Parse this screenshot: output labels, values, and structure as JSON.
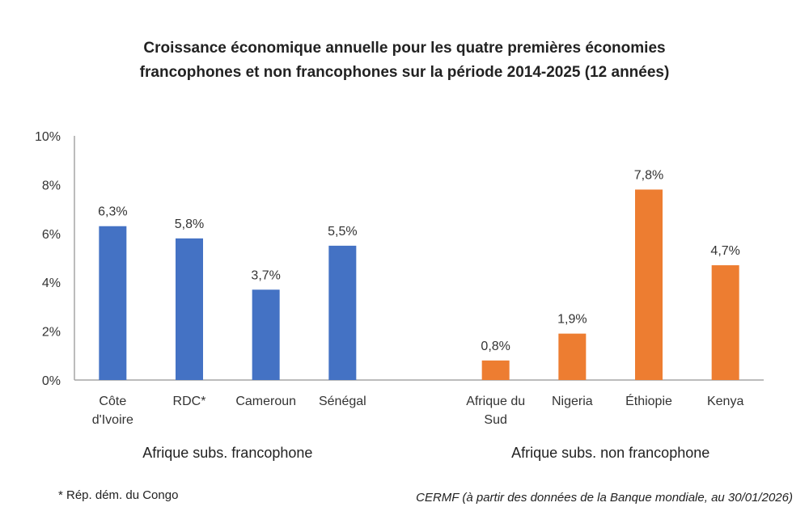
{
  "chart_data": {
    "type": "bar",
    "title_lines": [
      "Croissance économique annuelle pour les quatre premières économies",
      "francophones et non francophones sur la période 2014-2025  (12 années)"
    ],
    "ylim": [
      0,
      10
    ],
    "y_ticks": [
      "0%",
      "2%",
      "4%",
      "6%",
      "8%",
      "10%"
    ],
    "grid": false,
    "groups": [
      {
        "name": "Afrique subs. francophone",
        "color": "#4472C4",
        "categories": [
          [
            "Côte",
            "d'Ivoire"
          ],
          [
            "RDC*"
          ],
          [
            "Cameroun"
          ],
          [
            "Sénégal"
          ]
        ],
        "values": [
          6.3,
          5.8,
          3.7,
          5.5
        ],
        "labels": [
          "6,3%",
          "5,8%",
          "3,7%",
          "5,5%"
        ]
      },
      {
        "name": "Afrique subs. non francophone",
        "color": "#ED7D31",
        "categories": [
          [
            "Afrique du",
            "Sud"
          ],
          [
            "Nigeria"
          ],
          [
            "Éthiopie"
          ],
          [
            "Kenya"
          ]
        ],
        "values": [
          0.8,
          1.9,
          7.8,
          4.7
        ],
        "labels": [
          "0,8%",
          "1,9%",
          "7,8%",
          "4,7%"
        ]
      }
    ]
  },
  "footnote": "* Rép. dém. du Congo",
  "source": "CERMF (à partir des données de la Banque mondiale, au 30/01/2026)"
}
